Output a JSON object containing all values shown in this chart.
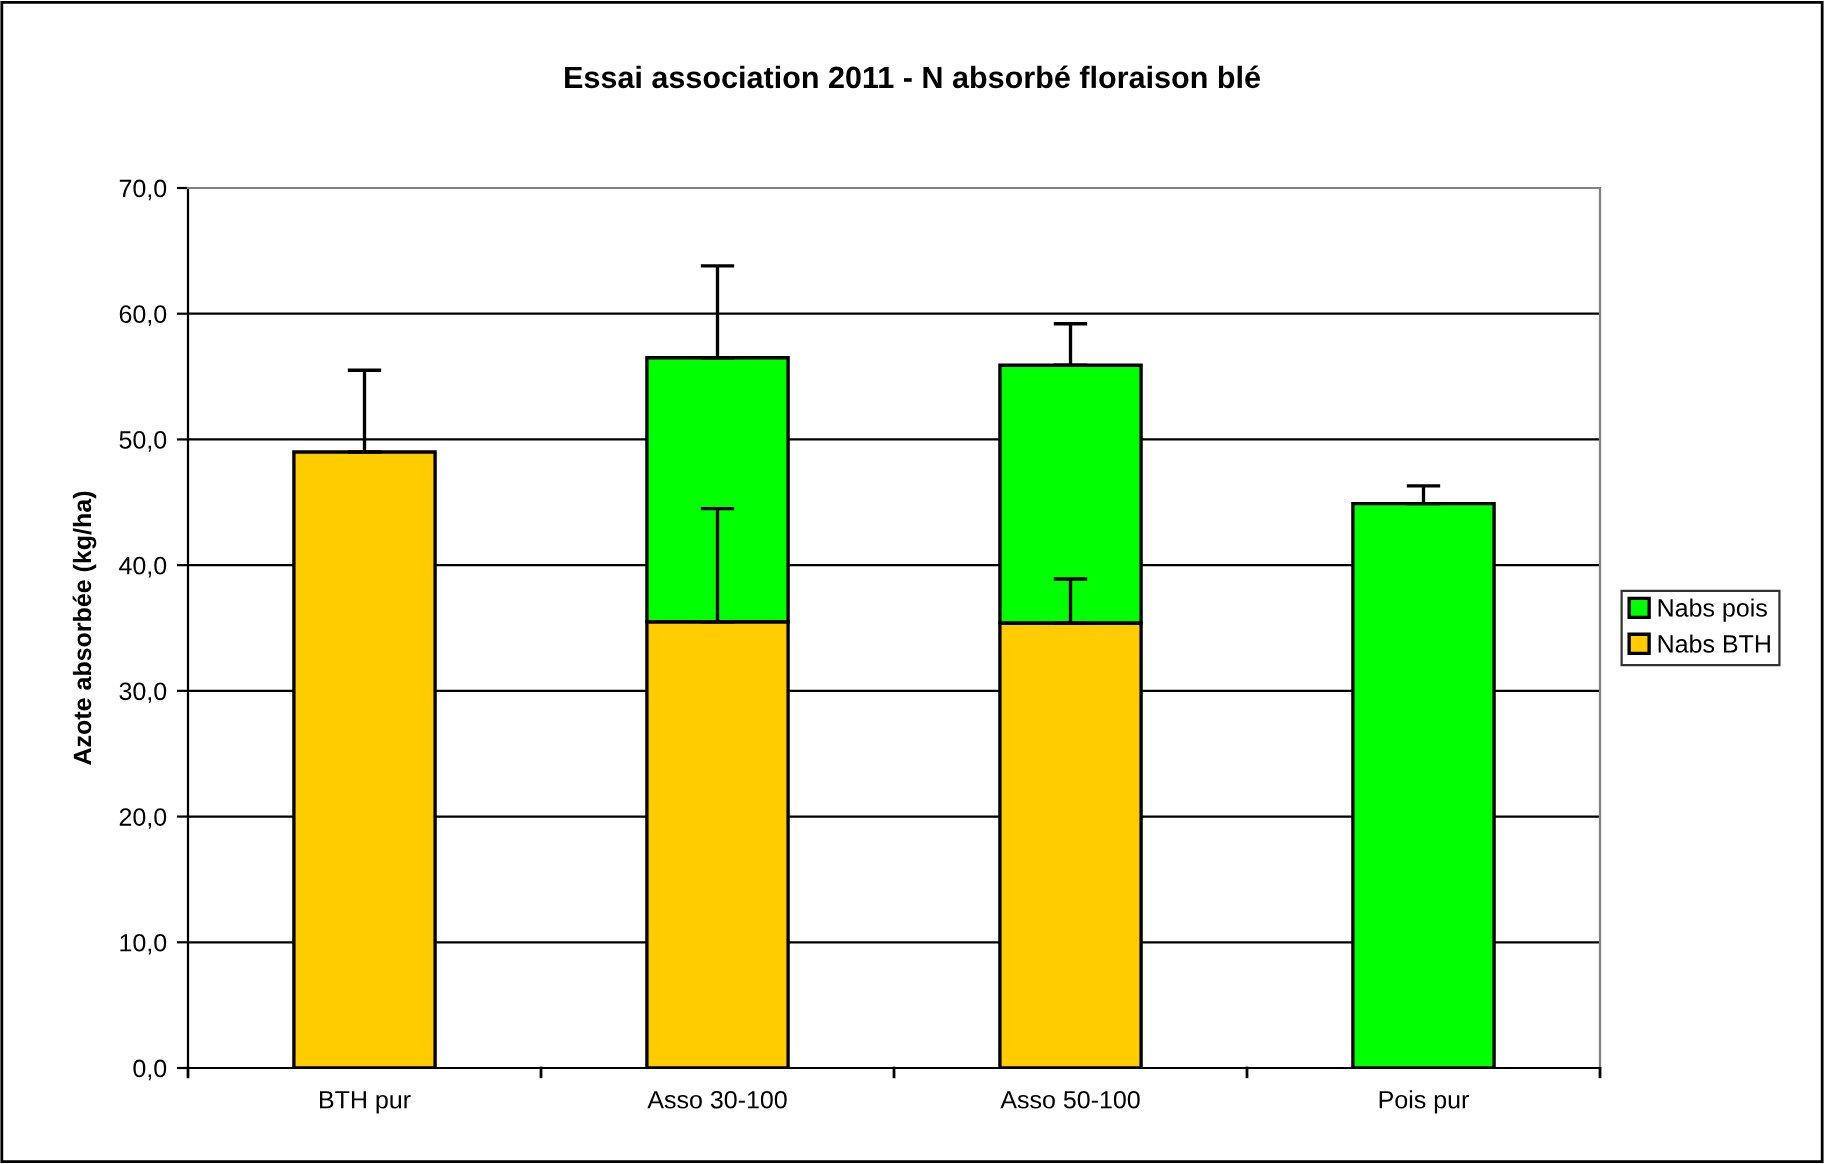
{
  "chart_data": {
    "type": "bar",
    "title": "Essai association 2011 - N absorbé floraison blé",
    "ylabel": "Azote absorbée (kg/ha)",
    "categories": [
      "BTH pur",
      "Asso 30-100",
      "Asso 50-100",
      "Pois pur"
    ],
    "stacked": true,
    "series": [
      {
        "name": "Nabs BTH",
        "color": "#ffcc00",
        "values": [
          49.0,
          35.5,
          35.4,
          null
        ],
        "errors": [
          [
            49.0,
            55.5
          ],
          [
            35.5,
            44.5
          ],
          [
            35.4,
            38.9
          ],
          null
        ]
      },
      {
        "name": "Nabs pois",
        "color": "#00ff00",
        "values": [
          null,
          21.0,
          20.5,
          44.9
        ],
        "errors": [
          null,
          [
            56.5,
            63.8
          ],
          [
            55.9,
            59.2
          ],
          [
            44.9,
            46.3
          ]
        ]
      }
    ],
    "ylim": [
      0,
      70
    ],
    "yticks": [
      {
        "value": 0,
        "label": "0,0"
      },
      {
        "value": 10,
        "label": "10,0"
      },
      {
        "value": 20,
        "label": "20,0"
      },
      {
        "value": 30,
        "label": "30,0"
      },
      {
        "value": 40,
        "label": "40,0"
      },
      {
        "value": 50,
        "label": "50,0"
      },
      {
        "value": 60,
        "label": "60,0"
      },
      {
        "value": 70,
        "label": "70,0"
      }
    ],
    "grid": "y",
    "legend": "right"
  }
}
